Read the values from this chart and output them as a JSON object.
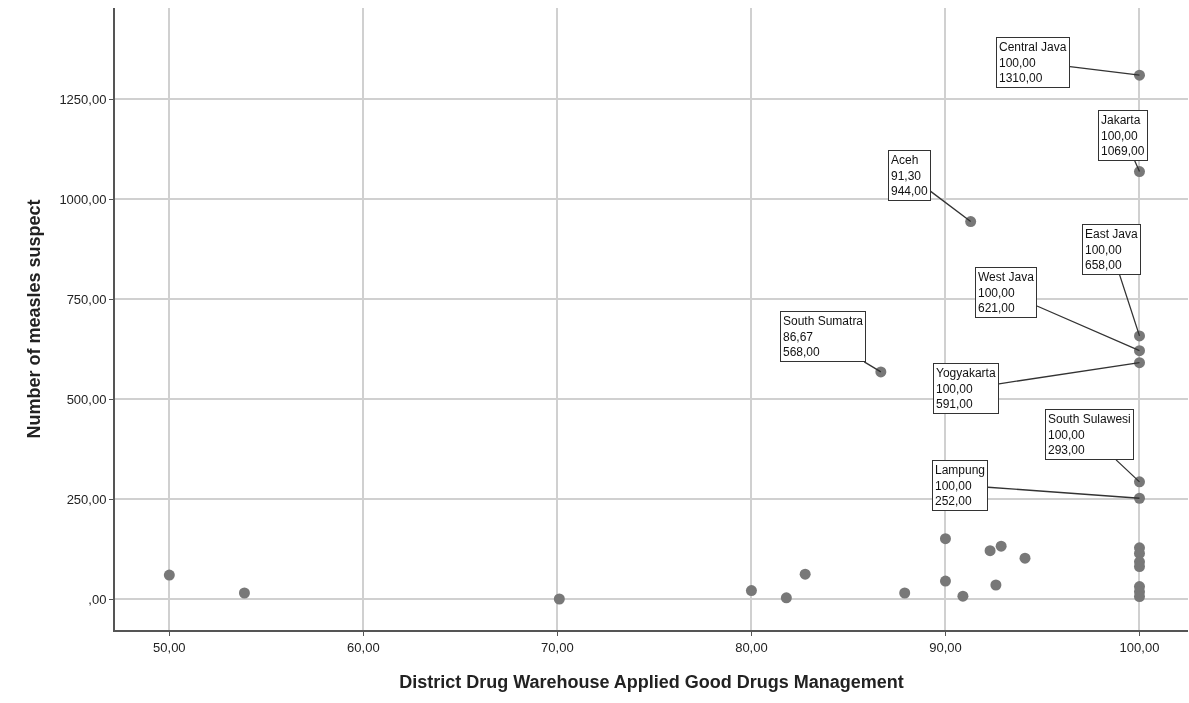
{
  "chart_data": {
    "type": "scatter",
    "xlabel": "District Drug Warehouse Applied Good Drugs Management",
    "ylabel": "Number of measles suspect",
    "x": [
      50.0,
      53.87,
      70.1,
      80.0,
      81.8,
      82.77,
      86.67,
      87.9,
      90.0,
      90.0,
      90.9,
      91.3,
      92.3,
      92.6,
      92.87,
      94.1,
      100,
      100,
      100,
      100,
      100,
      100,
      100,
      100,
      100,
      100,
      100,
      100,
      100,
      100
    ],
    "series": [
      {
        "color": "#787878",
        "values": [
          60,
          15,
          0,
          21,
          3,
          62,
          568,
          15,
          151,
          45,
          7,
          944,
          121,
          35,
          132,
          102,
          1310,
          1069,
          658,
          621,
          591,
          293,
          252,
          128,
          114,
          93,
          81,
          31,
          18,
          6
        ]
      }
    ],
    "marker": "circle",
    "grid": true,
    "xlim": [
      47.2,
      102.5
    ],
    "ylim": [
      -77.5,
      1478
    ],
    "xticks": [
      {
        "value": 50,
        "label": "50,00"
      },
      {
        "value": 60,
        "label": "60,00"
      },
      {
        "value": 70,
        "label": "70,00"
      },
      {
        "value": 80,
        "label": "80,00"
      },
      {
        "value": 90,
        "label": "90,00"
      },
      {
        "value": 100,
        "label": "100,00"
      }
    ],
    "yticks": [
      {
        "value": 0,
        "label": ",00"
      },
      {
        "value": 250,
        "label": "250,00"
      },
      {
        "value": 500,
        "label": "500,00"
      },
      {
        "value": 750,
        "label": "750,00"
      },
      {
        "value": 1000,
        "label": "1000,00"
      },
      {
        "value": 1250,
        "label": "1250,00"
      }
    ],
    "annotations": [
      {
        "text": "Central Java\n100,00\n1310,00",
        "x": 100,
        "y": 1310
      },
      {
        "text": "Jakarta\n100,00\n1069,00",
        "x": 100,
        "y": 1069
      },
      {
        "text": "Aceh\n91,30\n944,00",
        "x": 91.3,
        "y": 944
      },
      {
        "text": "East Java\n100,00\n658,00",
        "x": 100,
        "y": 658
      },
      {
        "text": "West Java\n100,00\n621,00",
        "x": 100,
        "y": 621
      },
      {
        "text": "Yogyakarta\n100,00\n591,00",
        "x": 100,
        "y": 591
      },
      {
        "text": "South Sumatra\n86,67\n568,00",
        "x": 86.67,
        "y": 568
      },
      {
        "text": "South Sulawesi\n100,00\n293,00",
        "x": 100,
        "y": 293
      },
      {
        "text": "Lampung\n100,00\n252,00",
        "x": 100,
        "y": 252
      }
    ]
  }
}
